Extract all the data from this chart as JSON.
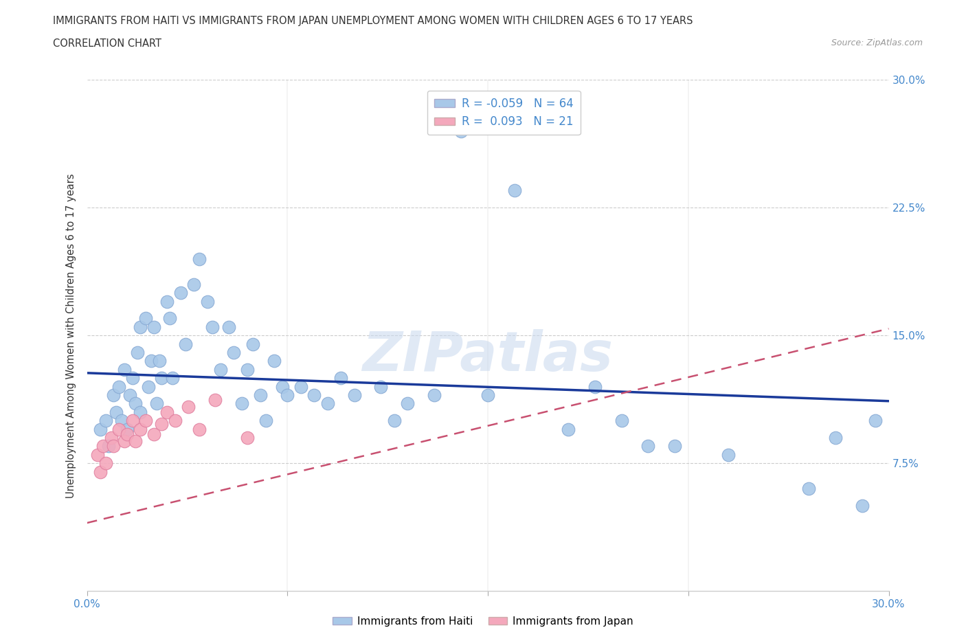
{
  "title_line1": "IMMIGRANTS FROM HAITI VS IMMIGRANTS FROM JAPAN UNEMPLOYMENT AMONG WOMEN WITH CHILDREN AGES 6 TO 17 YEARS",
  "title_line2": "CORRELATION CHART",
  "source": "Source: ZipAtlas.com",
  "ylabel": "Unemployment Among Women with Children Ages 6 to 17 years",
  "xlim": [
    0,
    0.3
  ],
  "ylim": [
    0,
    0.3
  ],
  "haiti_R": -0.059,
  "haiti_N": 64,
  "japan_R": 0.093,
  "japan_N": 21,
  "haiti_color": "#a8c8e8",
  "japan_color": "#f4a8bc",
  "haiti_line_color": "#1a3a9a",
  "japan_line_color": "#c85070",
  "background_color": "#ffffff",
  "grid_color": "#cccccc",
  "tick_color": "#4488cc",
  "watermark_text": "ZIPatlas",
  "haiti_x": [
    0.005,
    0.008,
    0.01,
    0.01,
    0.012,
    0.013,
    0.015,
    0.015,
    0.017,
    0.018,
    0.02,
    0.02,
    0.022,
    0.023,
    0.024,
    0.025,
    0.025,
    0.027,
    0.028,
    0.03,
    0.03,
    0.032,
    0.033,
    0.035,
    0.036,
    0.038,
    0.04,
    0.042,
    0.043,
    0.045,
    0.047,
    0.05,
    0.052,
    0.055,
    0.057,
    0.06,
    0.062,
    0.065,
    0.067,
    0.07,
    0.072,
    0.075,
    0.078,
    0.08,
    0.085,
    0.09,
    0.093,
    0.1,
    0.105,
    0.11,
    0.115,
    0.12,
    0.13,
    0.14,
    0.15,
    0.16,
    0.18,
    0.19,
    0.2,
    0.21,
    0.24,
    0.27,
    0.285,
    0.295
  ],
  "haiti_y": [
    0.095,
    0.085,
    0.11,
    0.1,
    0.12,
    0.105,
    0.13,
    0.095,
    0.115,
    0.125,
    0.145,
    0.1,
    0.155,
    0.11,
    0.125,
    0.16,
    0.105,
    0.135,
    0.115,
    0.17,
    0.125,
    0.165,
    0.14,
    0.175,
    0.12,
    0.155,
    0.18,
    0.195,
    0.13,
    0.175,
    0.16,
    0.13,
    0.125,
    0.14,
    0.155,
    0.17,
    0.145,
    0.125,
    0.1,
    0.135,
    0.115,
    0.12,
    0.16,
    0.115,
    0.12,
    0.11,
    0.125,
    0.115,
    0.1,
    0.12,
    0.11,
    0.115,
    0.11,
    0.12,
    0.27,
    0.115,
    0.235,
    0.125,
    0.1,
    0.085,
    0.085,
    0.095,
    0.05,
    0.1
  ],
  "japan_x": [
    0.005,
    0.007,
    0.009,
    0.011,
    0.013,
    0.015,
    0.018,
    0.02,
    0.023,
    0.025,
    0.028,
    0.03,
    0.033,
    0.038,
    0.042,
    0.048,
    0.055,
    0.06,
    0.068,
    0.075,
    0.085
  ],
  "japan_y": [
    0.085,
    0.07,
    0.095,
    0.09,
    0.08,
    0.095,
    0.105,
    0.095,
    0.1,
    0.11,
    0.09,
    0.1,
    0.105,
    0.115,
    0.1,
    0.085,
    0.115,
    0.095,
    0.125,
    0.12,
    0.085
  ]
}
